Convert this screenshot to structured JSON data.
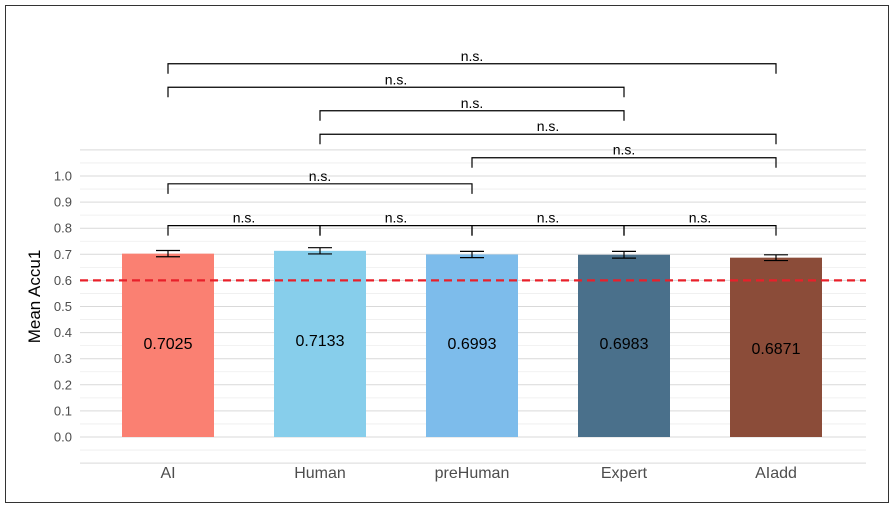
{
  "chart_data": {
    "type": "bar",
    "title": "",
    "xlabel": "",
    "ylabel": "Mean Accu1",
    "ylim": [
      0,
      1
    ],
    "yticks": [
      "0.0",
      "0.1",
      "0.2",
      "0.3",
      "0.4",
      "0.5",
      "0.6",
      "0.7",
      "0.8",
      "0.9",
      "1.0"
    ],
    "categories": [
      "AI",
      "Human",
      "preHuman",
      "Expert",
      "AIadd"
    ],
    "values": [
      0.7025,
      0.7133,
      0.6993,
      0.6983,
      0.6871
    ],
    "value_labels": [
      "0.7025",
      "0.7133",
      "0.6993",
      "0.6983",
      "0.6871"
    ],
    "errors": [
      0.012,
      0.012,
      0.012,
      0.013,
      0.011
    ],
    "bar_colors": [
      "#FA8072",
      "#87CEEB",
      "#7DBCEB",
      "#4A708B",
      "#8B4C39"
    ],
    "reference_line": {
      "value": 0.6,
      "color": "#E8202A",
      "style": "dashed"
    },
    "grid": true,
    "legend": "none",
    "significance": [
      {
        "from": 0,
        "to": 1,
        "label": "n.s.",
        "level": 0.81
      },
      {
        "from": 1,
        "to": 2,
        "label": "n.s.",
        "level": 0.81
      },
      {
        "from": 2,
        "to": 3,
        "label": "n.s.",
        "level": 0.81
      },
      {
        "from": 3,
        "to": 4,
        "label": "n.s.",
        "level": 0.81
      },
      {
        "from": 0,
        "to": 2,
        "label": "n.s.",
        "level": 0.97
      },
      {
        "from": 2,
        "to": 4,
        "label": "n.s.",
        "level": 1.07
      },
      {
        "from": 1,
        "to": 4,
        "label": "n.s.",
        "level": 1.16
      },
      {
        "from": 1,
        "to": 3,
        "label": "n.s.",
        "level": 1.25
      },
      {
        "from": 0,
        "to": 3,
        "label": "n.s.",
        "level": 1.34
      },
      {
        "from": 0,
        "to": 4,
        "label": "n.s.",
        "level": 1.43
      }
    ]
  }
}
